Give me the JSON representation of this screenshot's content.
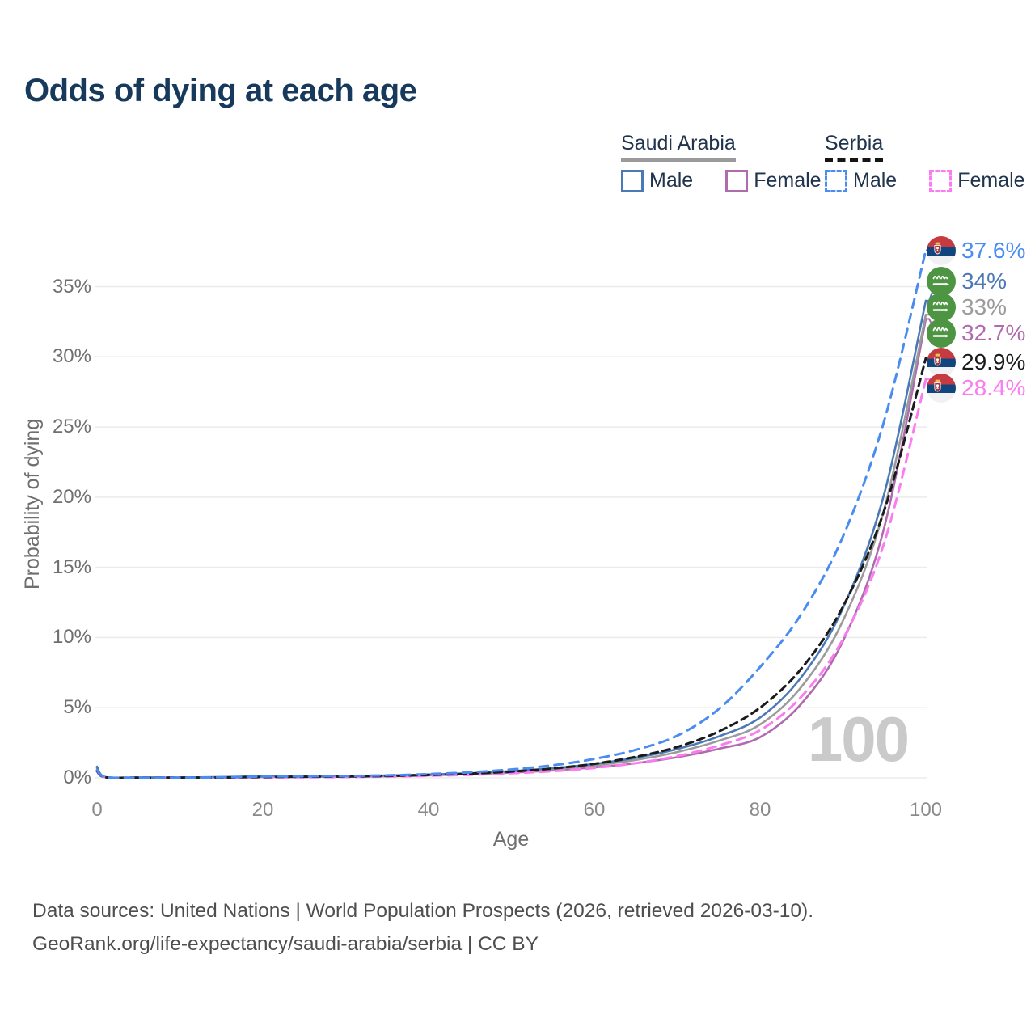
{
  "title": "Odds of dying at each age",
  "legend": {
    "groups": [
      {
        "name": "Saudi Arabia",
        "line_style": "solid",
        "items": [
          {
            "label": "Male",
            "color": "#4b79b6"
          },
          {
            "label": "Female",
            "color": "#ae6cae"
          }
        ]
      },
      {
        "name": "Serbia",
        "line_style": "dashed",
        "items": [
          {
            "label": "Male",
            "color": "#4a8cf1"
          },
          {
            "label": "Female",
            "color": "#fa7cf0"
          }
        ]
      }
    ]
  },
  "chart_data": {
    "type": "line",
    "title": "Odds of dying at each age",
    "xlabel": "Age",
    "ylabel": "Probability of dying",
    "xlim": [
      0,
      100
    ],
    "ylim": [
      0,
      38
    ],
    "x_ticks": [
      0,
      20,
      40,
      60,
      80,
      100
    ],
    "y_ticks": [
      "0%",
      "5%",
      "10%",
      "15%",
      "20%",
      "25%",
      "30%",
      "35%"
    ],
    "grid": "horizontal",
    "watermark": "100",
    "legend_position": "top-right",
    "ages": [
      0,
      1,
      5,
      10,
      15,
      20,
      25,
      30,
      35,
      40,
      45,
      50,
      55,
      60,
      65,
      70,
      75,
      80,
      85,
      90,
      95,
      100
    ],
    "series": [
      {
        "name": "Serbia Male",
        "country": "Serbia",
        "flag": "serbia",
        "style": "dashed",
        "color": "#4a8cf1",
        "end_label": "37.6%",
        "end_value": 37.6,
        "values": [
          0.55,
          0.05,
          0.02,
          0.02,
          0.04,
          0.09,
          0.11,
          0.13,
          0.18,
          0.27,
          0.4,
          0.6,
          0.9,
          1.35,
          2.0,
          3.0,
          4.9,
          7.9,
          11.7,
          17.2,
          25.5,
          37.6
        ]
      },
      {
        "name": "Saudi Arabia Male",
        "country": "Saudi Arabia",
        "flag": "saudi",
        "style": "solid",
        "color": "#4b79b6",
        "end_label": "34%",
        "end_value": 34,
        "values": [
          0.8,
          0.06,
          0.03,
          0.03,
          0.06,
          0.12,
          0.13,
          0.14,
          0.17,
          0.24,
          0.33,
          0.48,
          0.69,
          0.99,
          1.43,
          2.05,
          2.95,
          4.3,
          7.2,
          12.1,
          20.3,
          34.0
        ]
      },
      {
        "name": "Saudi Arabia Total",
        "country": "Saudi Arabia",
        "flag": "saudi",
        "style": "solid",
        "color": "#9b9b9b",
        "end_label": "33%",
        "end_value": 33,
        "values": [
          0.75,
          0.06,
          0.03,
          0.03,
          0.05,
          0.09,
          0.1,
          0.11,
          0.14,
          0.21,
          0.3,
          0.43,
          0.62,
          0.89,
          1.28,
          1.84,
          2.64,
          3.8,
          6.5,
          11.2,
          19.2,
          33.0
        ]
      },
      {
        "name": "Saudi Arabia Female",
        "country": "Saudi Arabia",
        "flag": "saudi",
        "style": "solid",
        "color": "#ae6cae",
        "end_label": "32.7%",
        "end_value": 32.7,
        "values": [
          0.7,
          0.05,
          0.02,
          0.02,
          0.04,
          0.06,
          0.07,
          0.08,
          0.11,
          0.18,
          0.27,
          0.38,
          0.53,
          0.75,
          1.05,
          1.47,
          2.07,
          2.9,
          5.3,
          9.75,
          17.9,
          32.7
        ]
      },
      {
        "name": "Serbia Total",
        "country": "Serbia",
        "flag": "serbia",
        "style": "dashed",
        "color": "#1b1b1b",
        "end_label": "29.9%",
        "end_value": 29.9,
        "values": [
          0.5,
          0.04,
          0.02,
          0.02,
          0.03,
          0.06,
          0.08,
          0.1,
          0.14,
          0.21,
          0.3,
          0.45,
          0.67,
          1.0,
          1.5,
          2.2,
          3.3,
          5.0,
          7.8,
          12.2,
          19.1,
          29.9
        ]
      },
      {
        "name": "Serbia Female",
        "country": "Serbia",
        "flag": "serbia",
        "style": "dashed",
        "color": "#fa7cf0",
        "end_label": "28.4%",
        "end_value": 28.4,
        "values": [
          0.45,
          0.04,
          0.01,
          0.01,
          0.02,
          0.03,
          0.04,
          0.06,
          0.09,
          0.15,
          0.22,
          0.33,
          0.48,
          0.71,
          1.05,
          1.55,
          2.3,
          3.4,
          5.8,
          9.9,
          16.8,
          28.4
        ]
      }
    ]
  },
  "footer": {
    "line1": "Data sources: United Nations | World Population Prospects (2026, retrieved 2026-03-10).",
    "line2": "GeoRank.org/life-expectancy/saudi-arabia/serbia | CC BY"
  }
}
